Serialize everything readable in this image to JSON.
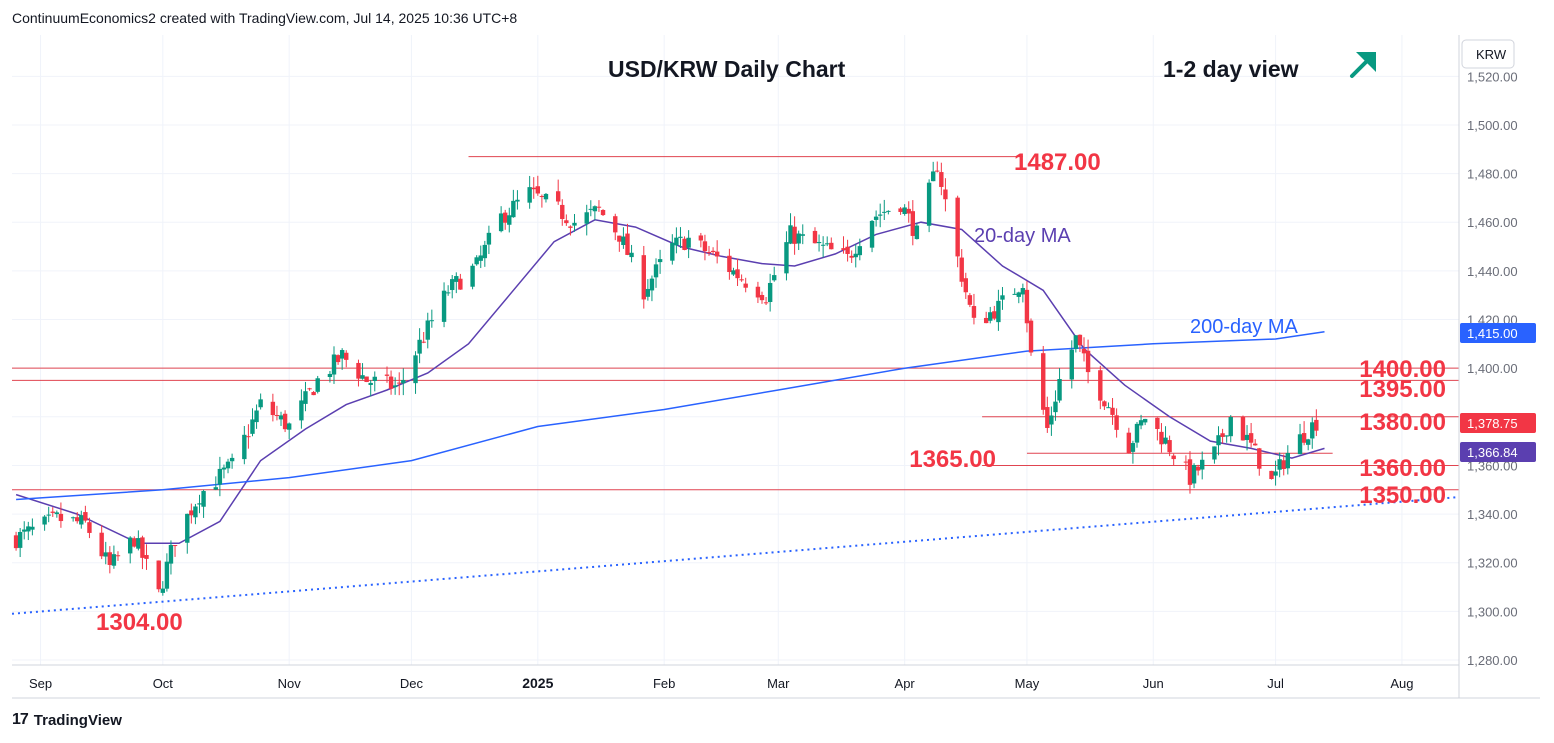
{
  "attribution": "ContinuumEconomics2 created with TradingView.com, Jul 14, 2025 10:36 UTC+8",
  "footer": {
    "brand": "TradingView",
    "logo_icon": "tradingview-logo-icon"
  },
  "colors": {
    "up": "#089981",
    "down": "#f23645",
    "ma20": "#5b3fb0",
    "ma200": "#2962ff",
    "level": "#e04450",
    "trend": "#2962ff",
    "arrow": "#089981"
  },
  "chart_data": {
    "type": "candlestick",
    "title": "USD/KRW Daily Chart",
    "view_label": "1-2 day view",
    "view_arrow_icon": "arrow-up-right-icon",
    "currency_label": "KRW",
    "y_ticks": [
      "1,520.00",
      "1,500.00",
      "1,480.00",
      "1,460.00",
      "1,440.00",
      "1,420.00",
      "1,400.00",
      "1,380.00",
      "1,360.00",
      "1,340.00",
      "1,320.00",
      "1,300.00",
      "1,280.00"
    ],
    "ylim": [
      1280,
      1530
    ],
    "x_ticks": [
      {
        "label": "Sep",
        "date": "2024-09-01"
      },
      {
        "label": "Oct",
        "date": "2024-10-01"
      },
      {
        "label": "Nov",
        "date": "2024-11-01"
      },
      {
        "label": "Dec",
        "date": "2024-12-01"
      },
      {
        "label": "2025",
        "date": "2025-01-01",
        "bold": true
      },
      {
        "label": "Feb",
        "date": "2025-02-01"
      },
      {
        "label": "Mar",
        "date": "2025-03-01"
      },
      {
        "label": "Apr",
        "date": "2025-04-01"
      },
      {
        "label": "May",
        "date": "2025-05-01"
      },
      {
        "label": "Jun",
        "date": "2025-06-01"
      },
      {
        "label": "Jul",
        "date": "2025-07-01"
      },
      {
        "label": "Aug",
        "date": "2025-08-01"
      }
    ],
    "xlim": [
      "2024-08-25",
      "2025-08-15"
    ],
    "close_path": [
      [
        "2024-08-26",
        1330
      ],
      [
        "2024-09-05",
        1338
      ],
      [
        "2024-09-12",
        1336
      ],
      [
        "2024-09-18",
        1318
      ],
      [
        "2024-09-24",
        1330
      ],
      [
        "2024-09-30",
        1307
      ],
      [
        "2024-10-04",
        1330
      ],
      [
        "2024-10-10",
        1348
      ],
      [
        "2024-10-18",
        1360
      ],
      [
        "2024-10-25",
        1385
      ],
      [
        "2024-11-01",
        1376
      ],
      [
        "2024-11-08",
        1395
      ],
      [
        "2024-11-14",
        1405
      ],
      [
        "2024-11-20",
        1395
      ],
      [
        "2024-11-28",
        1392
      ],
      [
        "2024-12-03",
        1410
      ],
      [
        "2024-12-10",
        1432
      ],
      [
        "2024-12-17",
        1442
      ],
      [
        "2024-12-23",
        1462
      ],
      [
        "2024-12-30",
        1472
      ],
      [
        "2025-01-06",
        1465
      ],
      [
        "2025-01-10",
        1460
      ],
      [
        "2025-01-16",
        1465
      ],
      [
        "2025-01-21",
        1455
      ],
      [
        "2025-01-27",
        1432
      ],
      [
        "2025-02-03",
        1450
      ],
      [
        "2025-02-07",
        1453
      ],
      [
        "2025-02-14",
        1445
      ],
      [
        "2025-02-20",
        1437
      ],
      [
        "2025-02-26",
        1430
      ],
      [
        "2025-03-04",
        1455
      ],
      [
        "2025-03-11",
        1450
      ],
      [
        "2025-03-18",
        1445
      ],
      [
        "2025-03-24",
        1462
      ],
      [
        "2025-03-31",
        1468
      ],
      [
        "2025-04-04",
        1455
      ],
      [
        "2025-04-09",
        1484
      ],
      [
        "2025-04-14",
        1445
      ],
      [
        "2025-04-18",
        1418
      ],
      [
        "2025-04-24",
        1425
      ],
      [
        "2025-04-30",
        1436
      ],
      [
        "2025-05-02",
        1405
      ],
      [
        "2025-05-06",
        1375
      ],
      [
        "2025-05-09",
        1395
      ],
      [
        "2025-05-13",
        1412
      ],
      [
        "2025-05-16",
        1398
      ],
      [
        "2025-05-21",
        1385
      ],
      [
        "2025-05-26",
        1368
      ],
      [
        "2025-05-30",
        1380
      ],
      [
        "2025-06-04",
        1370
      ],
      [
        "2025-06-10",
        1355
      ],
      [
        "2025-06-16",
        1365
      ],
      [
        "2025-06-20",
        1380
      ],
      [
        "2025-06-25",
        1368
      ],
      [
        "2025-06-30",
        1353
      ],
      [
        "2025-07-04",
        1365
      ],
      [
        "2025-07-08",
        1373
      ],
      [
        "2025-07-11",
        1378
      ]
    ],
    "moving_averages": [
      {
        "name": "20-day MA",
        "price": "1,366.84",
        "points": [
          [
            "2024-08-26",
            1348
          ],
          [
            "2024-09-10",
            1340
          ],
          [
            "2024-09-25",
            1328
          ],
          [
            "2024-10-05",
            1328
          ],
          [
            "2024-10-15",
            1337
          ],
          [
            "2024-10-25",
            1362
          ],
          [
            "2024-11-05",
            1375
          ],
          [
            "2024-11-15",
            1385
          ],
          [
            "2024-11-25",
            1391
          ],
          [
            "2024-12-05",
            1398
          ],
          [
            "2024-12-15",
            1410
          ],
          [
            "2024-12-25",
            1430
          ],
          [
            "2025-01-05",
            1452
          ],
          [
            "2025-01-15",
            1461
          ],
          [
            "2025-01-25",
            1458
          ],
          [
            "2025-02-05",
            1450
          ],
          [
            "2025-02-15",
            1446
          ],
          [
            "2025-02-25",
            1443
          ],
          [
            "2025-03-05",
            1442
          ],
          [
            "2025-03-15",
            1447
          ],
          [
            "2025-03-25",
            1455
          ],
          [
            "2025-04-05",
            1460
          ],
          [
            "2025-04-15",
            1457
          ],
          [
            "2025-04-25",
            1442
          ],
          [
            "2025-05-05",
            1432
          ],
          [
            "2025-05-15",
            1408
          ],
          [
            "2025-05-25",
            1393
          ],
          [
            "2025-06-05",
            1380
          ],
          [
            "2025-06-15",
            1370
          ],
          [
            "2025-06-25",
            1367
          ],
          [
            "2025-07-05",
            1363
          ],
          [
            "2025-07-13",
            1367
          ]
        ]
      },
      {
        "name": "200-day MA",
        "price": "1,415.00",
        "points": [
          [
            "2024-08-26",
            1346
          ],
          [
            "2024-10-01",
            1350
          ],
          [
            "2024-11-01",
            1355
          ],
          [
            "2024-12-01",
            1362
          ],
          [
            "2025-01-01",
            1376
          ],
          [
            "2025-02-01",
            1383
          ],
          [
            "2025-03-01",
            1391
          ],
          [
            "2025-04-01",
            1400
          ],
          [
            "2025-05-01",
            1407
          ],
          [
            "2025-06-01",
            1410
          ],
          [
            "2025-07-01",
            1412
          ],
          [
            "2025-07-13",
            1415
          ]
        ]
      }
    ],
    "last_price": "1,378.75",
    "levels": [
      {
        "label": "1487.00",
        "value": 1487,
        "from": "2024-12-15",
        "to": "2025-04-30"
      },
      {
        "label": "1400.00",
        "value": 1400,
        "from": "2024-08-25",
        "to": "2025-08-15"
      },
      {
        "label": "1395.00",
        "value": 1395,
        "from": "2024-08-25",
        "to": "2025-08-15"
      },
      {
        "label": "1380.00",
        "value": 1380,
        "from": "2025-04-20",
        "to": "2025-08-15"
      },
      {
        "label": "1365.00",
        "value": 1365,
        "from": "2025-05-01",
        "to": "2025-07-15"
      },
      {
        "label": "1360.00",
        "value": 1360,
        "from": "2025-04-20",
        "to": "2025-08-15"
      },
      {
        "label": "1350.00",
        "value": 1350,
        "from": "2024-08-25",
        "to": "2025-08-15"
      }
    ],
    "low_label": {
      "label": "1304.00",
      "value": 1304,
      "date": "2024-09-30"
    },
    "trendline": {
      "style": "dotted",
      "from": [
        "2024-08-25",
        1299
      ],
      "to": [
        "2025-08-15",
        1347
      ]
    }
  }
}
